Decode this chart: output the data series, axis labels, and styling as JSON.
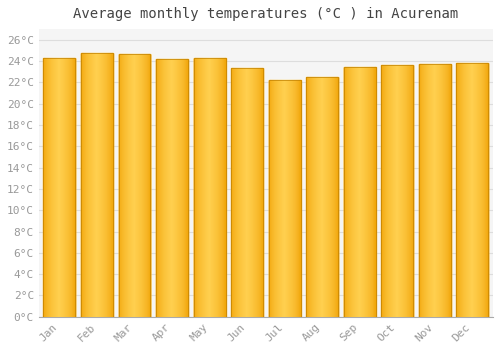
{
  "title": "Average monthly temperatures (°C ) in Acurenam",
  "months": [
    "Jan",
    "Feb",
    "Mar",
    "Apr",
    "May",
    "Jun",
    "Jul",
    "Aug",
    "Sep",
    "Oct",
    "Nov",
    "Dec"
  ],
  "values": [
    24.3,
    24.8,
    24.7,
    24.2,
    24.3,
    23.3,
    22.2,
    22.5,
    23.4,
    23.6,
    23.7,
    23.8
  ],
  "bar_color_center": "#FFD050",
  "bar_color_edge": "#F0A000",
  "bar_edge_color": "#C08000",
  "background_color": "#FFFFFF",
  "plot_bg_color": "#F5F5F5",
  "grid_color": "#DDDDDD",
  "ylim": [
    0,
    27
  ],
  "ytick_step": 2,
  "title_fontsize": 10,
  "tick_fontsize": 8,
  "tick_color": "#999999",
  "title_color": "#444444",
  "bar_width": 0.85
}
